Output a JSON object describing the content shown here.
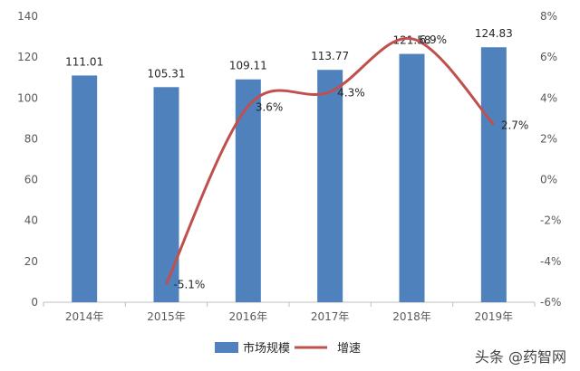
{
  "chart_data": {
    "type": "bar",
    "categories": [
      "2014年",
      "2015年",
      "2016年",
      "2017年",
      "2018年",
      "2019年"
    ],
    "series": [
      {
        "name": "市场规模",
        "type": "bar",
        "axis": "left",
        "values": [
          111.01,
          105.31,
          109.11,
          113.77,
          121.58,
          124.83
        ],
        "labels": [
          "111.01",
          "105.31",
          "109.11",
          "113.77",
          "121.58",
          "124.83"
        ],
        "color": "#4f81bd"
      },
      {
        "name": "增速",
        "type": "line",
        "axis": "right",
        "smooth": true,
        "values": [
          null,
          -5.1,
          3.6,
          4.3,
          6.9,
          2.7
        ],
        "labels": [
          "",
          "-5.1%",
          "3.6%",
          "4.3%",
          "6.9%",
          "2.7%"
        ],
        "color": "#c0504d"
      }
    ],
    "y_left": {
      "min": 0,
      "max": 140,
      "ticks": [
        "0",
        "20",
        "40",
        "60",
        "80",
        "100",
        "120",
        "140"
      ]
    },
    "y_right": {
      "min": -6,
      "max": 8,
      "ticks": [
        "-6%",
        "-4%",
        "-2%",
        "0%",
        "2%",
        "4%",
        "6%",
        "8%"
      ]
    },
    "grid": false,
    "legend": "bottom-center"
  },
  "watermark": {
    "text": "头条 @药智网"
  }
}
